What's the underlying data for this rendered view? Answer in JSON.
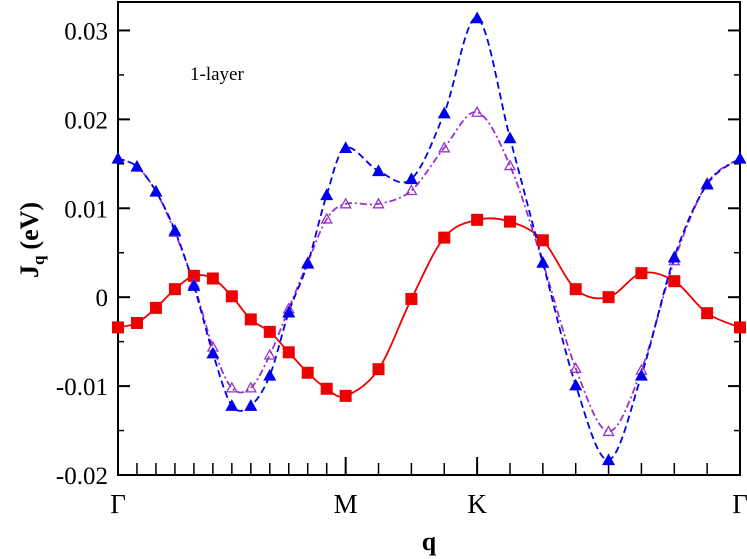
{
  "chart_data": {
    "type": "line",
    "annotation": "1-layer",
    "ylabel": "J",
    "ylabel_sub": "q",
    "ylabel_unit": "(eV)",
    "xlabel": "q",
    "x": [
      0,
      0.0833,
      0.1667,
      0.25,
      0.3333,
      0.4167,
      0.5,
      0.5833,
      0.6667,
      0.75,
      0.8333,
      0.9167,
      1,
      1.1443,
      1.2887,
      1.433,
      1.5774,
      1.7217,
      1.866,
      2.0104,
      2.1547,
      2.299,
      2.4434,
      2.5877,
      2.732
    ],
    "xlim": [
      0,
      2.732
    ],
    "xticks": [
      {
        "value": 0,
        "label": "Γ"
      },
      {
        "value": 1,
        "label": "M"
      },
      {
        "value": 1.5774,
        "label": "K"
      },
      {
        "value": 2.732,
        "label": "Γ"
      }
    ],
    "ylim": [
      -0.02,
      0.0332
    ],
    "yticks": [
      0.03,
      0.02,
      0.01,
      0,
      -0.01,
      -0.02
    ],
    "series": [
      {
        "name": "red",
        "color": "#ee0000",
        "marker": "square",
        "dash": "solid",
        "values": [
          -0.0034,
          -0.0029,
          -0.0012,
          0.0009,
          0.0024,
          0.0021,
          0.0001,
          -0.0025,
          -0.0039,
          -0.0062,
          -0.0085,
          -0.0103,
          -0.0111,
          -0.0081,
          -0.0002,
          0.0067,
          0.0087,
          0.0085,
          0.0064,
          0.0009,
          0.0,
          0.0027,
          0.0018,
          -0.0018,
          -0.0034
        ]
      },
      {
        "name": "purple",
        "color": "#9932cc",
        "marker": "open-triangle",
        "dash": "dashdot",
        "values": [
          0.0156,
          0.0147,
          0.0119,
          0.0073,
          0.0015,
          -0.0056,
          -0.0102,
          -0.0102,
          -0.0065,
          -0.0013,
          0.0039,
          0.0088,
          0.0105,
          0.0105,
          0.012,
          0.0168,
          0.0208,
          0.0148,
          0.0039,
          -0.008,
          -0.0151,
          -0.0082,
          0.0041,
          0.0128,
          0.0156
        ]
      },
      {
        "name": "blue",
        "color": "#0000ee",
        "marker": "triangle",
        "dash": "dash",
        "values": [
          0.0156,
          0.0147,
          0.0119,
          0.0075,
          0.0013,
          -0.0063,
          -0.0122,
          -0.0122,
          -0.0088,
          -0.0017,
          0.0038,
          0.0115,
          0.0168,
          0.0142,
          0.0133,
          0.0207,
          0.0314,
          0.0179,
          0.0039,
          -0.0099,
          -0.0183,
          -0.0088,
          0.0045,
          0.0127,
          0.0156
        ]
      }
    ]
  }
}
